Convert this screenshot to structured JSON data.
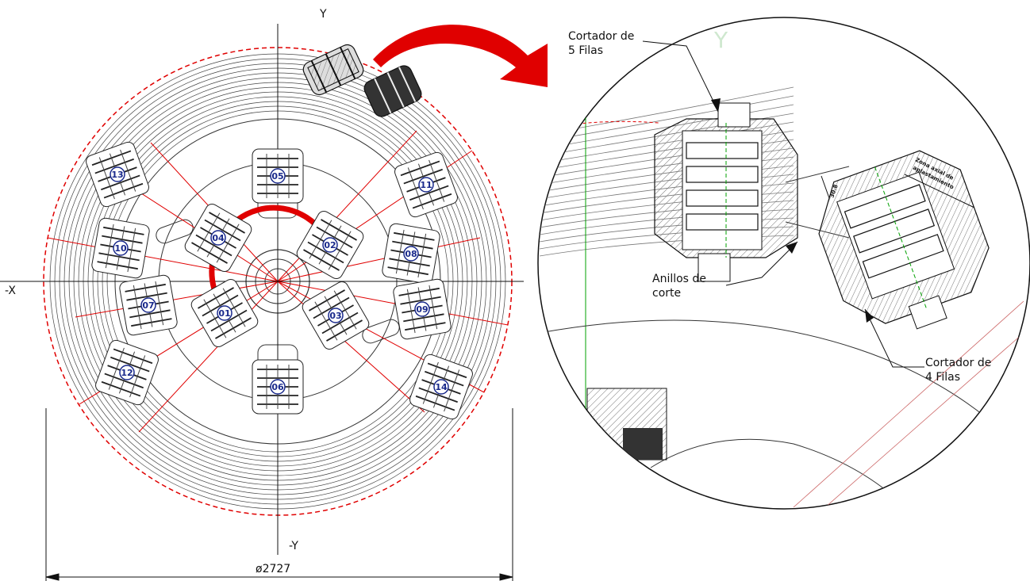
{
  "axes": {
    "y_pos": "Y",
    "y_neg": "-Y",
    "x_neg": "-X",
    "detail_y": "Y"
  },
  "dimension": {
    "diameter": "ø2727"
  },
  "cutters": [
    "01",
    "02",
    "03",
    "04",
    "05",
    "06",
    "07",
    "08",
    "09",
    "10",
    "11",
    "12",
    "13",
    "14"
  ],
  "callouts": {
    "cutter5_line1": "Cortador de",
    "cutter5_line2": "5 Filas",
    "rings_line1": "Anillos de",
    "rings_line2": "corte",
    "cutter4_line1": "Cortador de",
    "cutter4_line2": "4 Filas",
    "zone_line1": "Zona axial de",
    "zone_line2": "aplastamiento",
    "gap_dim": "30.8"
  },
  "colors": {
    "red": "#e00000",
    "navy": "#1a2a8c",
    "line": "#555555",
    "green": "#00a000"
  }
}
